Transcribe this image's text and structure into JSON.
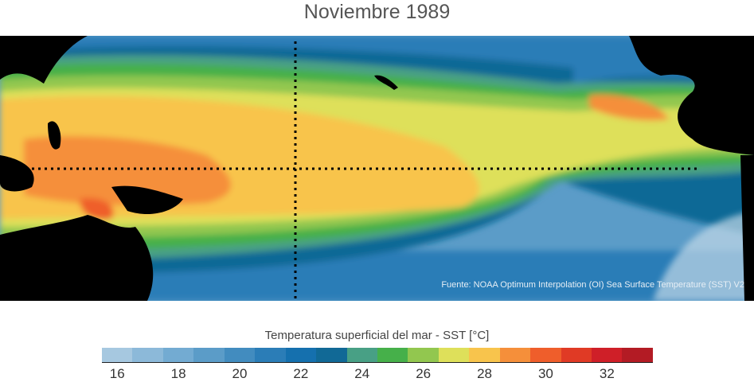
{
  "title": "Noviembre 1989",
  "source": "Fuente: NOAA Optimum Interpolation (OI) Sea Surface Temperature (SST) V2",
  "colorbar": {
    "label": "Temperatura superficial del mar - SST  [°C]",
    "ticks": [
      "16",
      "18",
      "20",
      "22",
      "24",
      "26",
      "28",
      "30",
      "32"
    ],
    "range": [
      15.5,
      33.5
    ],
    "colors": [
      "#a6c8e0",
      "#8cb9d9",
      "#73abd2",
      "#5b9cc8",
      "#428cbf",
      "#2b7db7",
      "#1570ae",
      "#116996",
      "#48a085",
      "#46b04a",
      "#92c74f",
      "#dee05a",
      "#f8c44c",
      "#f58f3a",
      "#ef5e2b",
      "#e03a25",
      "#cf1f28",
      "#b31b24"
    ]
  }
}
